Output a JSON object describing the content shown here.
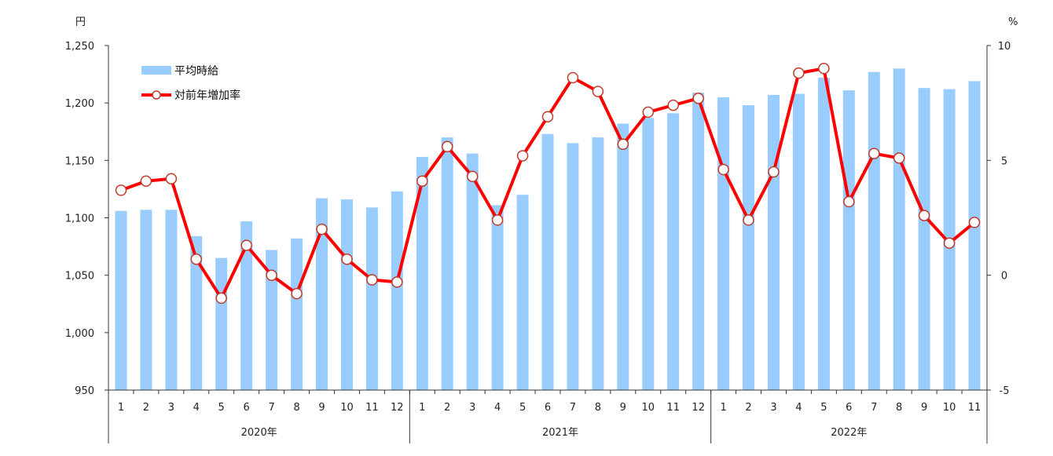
{
  "chart_data": {
    "type": "bar",
    "left_unit": "円",
    "right_unit": "%",
    "left_ylim": [
      950,
      1250
    ],
    "left_ticks": [
      "950",
      "1,000",
      "1,050",
      "1,100",
      "1,150",
      "1,200",
      "1,250"
    ],
    "right_ylim": [
      -5,
      10
    ],
    "right_ticks": [
      "-5",
      "0",
      "5",
      "10"
    ],
    "grid": false,
    "legend_position": "top-left",
    "categories": [
      "1",
      "2",
      "3",
      "4",
      "5",
      "6",
      "7",
      "8",
      "9",
      "10",
      "11",
      "12",
      "1",
      "2",
      "3",
      "4",
      "5",
      "6",
      "7",
      "8",
      "9",
      "10",
      "11",
      "12",
      "1",
      "2",
      "3",
      "4",
      "5",
      "6",
      "7",
      "8",
      "9",
      "10",
      "11"
    ],
    "groups": [
      {
        "label": "2020年",
        "count": 12
      },
      {
        "label": "2021年",
        "count": 12
      },
      {
        "label": "2022年",
        "count": 11
      }
    ],
    "series": [
      {
        "name": "平均時給",
        "type": "bar",
        "axis": "left",
        "color": "#99ccff",
        "values": [
          1106,
          1107,
          1107,
          1084,
          1065,
          1097,
          1072,
          1082,
          1117,
          1116,
          1109,
          1123,
          1153,
          1170,
          1156,
          1111,
          1120,
          1173,
          1165,
          1170,
          1182,
          1187,
          1191,
          1209,
          1205,
          1198,
          1207,
          1208,
          1222,
          1211,
          1227,
          1230,
          1213,
          1212,
          1219
        ]
      },
      {
        "name": "対前年増加率",
        "type": "line",
        "axis": "right",
        "color": "#ff0000",
        "marker_stroke": "#c0392b",
        "values": [
          3.7,
          4.1,
          4.2,
          0.7,
          -1.0,
          1.3,
          0.0,
          -0.8,
          2.0,
          0.7,
          -0.2,
          -0.3,
          4.1,
          5.6,
          4.3,
          2.4,
          5.2,
          6.9,
          8.6,
          8.0,
          5.7,
          7.1,
          7.4,
          7.7,
          4.6,
          2.4,
          4.5,
          8.8,
          9.0,
          3.2,
          5.3,
          5.1,
          2.6,
          1.4,
          2.3
        ]
      }
    ]
  }
}
